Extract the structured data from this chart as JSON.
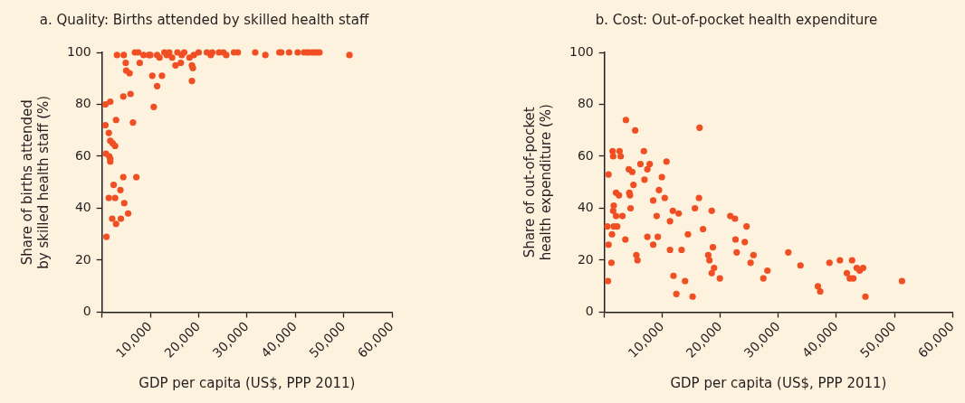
{
  "chart_data": [
    {
      "type": "scatter",
      "title": "a. Quality: Births attended by skilled health staff",
      "xlabel": "GDP per capita (US$, PPP 2011)",
      "ylabel": "Share of births attended by skilled health staff (%)",
      "xlim": [
        0,
        60000
      ],
      "xticks": [
        {
          "value": 0,
          "label": null
        },
        {
          "value": 10000,
          "label": "10,000"
        },
        {
          "value": 20000,
          "label": "20,000"
        },
        {
          "value": 30000,
          "label": "30,000"
        },
        {
          "value": 40000,
          "label": "40,000"
        },
        {
          "value": 50000,
          "label": "50,000"
        },
        {
          "value": 60000,
          "label": "60,000"
        }
      ],
      "ylim": [
        0,
        100
      ],
      "yticks": [
        0,
        20,
        40,
        60,
        80,
        100
      ],
      "grid": false,
      "legend": false,
      "marker": "circle",
      "series": [
        {
          "color": "#f04e23",
          "x": [
            3100,
            4500,
            6800,
            7500,
            8600,
            9700,
            10000,
            11400,
            11900,
            12900,
            13400,
            13900,
            14500,
            15600,
            16500,
            17000,
            18100,
            19000,
            20000,
            21700,
            22500,
            22800,
            24200,
            25100,
            25700,
            27300,
            28100,
            31700,
            33800,
            36700,
            37100,
            38700,
            40500,
            41800,
            42400,
            42800,
            43500,
            44000,
            44600,
            45000,
            51200,
            4900,
            7800,
            5000,
            5700,
            10400,
            15200,
            16300,
            18600,
            18800,
            18600,
            12400,
            11400,
            10700,
            5900,
            4400,
            700,
            1700,
            2900,
            6400,
            700,
            1400,
            1700,
            2200,
            2700,
            800,
            1500,
            1700,
            1700,
            4400,
            7100,
            2400,
            1400,
            2700,
            3800,
            4600,
            5400,
            2100,
            3900,
            2900,
            900
          ],
          "values": [
            99,
            99,
            100,
            100,
            99,
            99,
            99,
            99,
            98,
            100,
            99,
            100,
            98,
            100,
            99,
            100,
            98,
            99,
            100,
            100,
            99,
            100,
            100,
            100,
            99,
            100,
            100,
            100,
            99,
            100,
            100,
            100,
            100,
            100,
            100,
            100,
            100,
            100,
            100,
            100,
            99,
            96,
            96,
            93,
            92,
            91,
            95,
            96,
            95,
            94,
            89,
            91,
            87,
            79,
            84,
            83,
            80,
            81,
            74,
            73,
            72,
            69,
            66,
            65,
            64,
            61,
            60,
            59,
            58,
            52,
            52,
            49,
            44,
            44,
            47,
            42,
            38,
            36,
            36,
            34,
            29
          ]
        }
      ]
    },
    {
      "type": "scatter",
      "title": "b. Cost: Out-of-pocket health expenditure",
      "xlabel": "GDP per capita (US$, PPP 2011)",
      "ylabel": "Share of out-of-pocket health expenditure (%)",
      "xlim": [
        0,
        60000
      ],
      "xticks": [
        {
          "value": 0,
          "label": null
        },
        {
          "value": 10000,
          "label": "10,000"
        },
        {
          "value": 20000,
          "label": "20,000"
        },
        {
          "value": 30000,
          "label": "30,000"
        },
        {
          "value": 40000,
          "label": "40,000"
        },
        {
          "value": 50000,
          "label": "50,000"
        },
        {
          "value": 60000,
          "label": "60,000"
        }
      ],
      "ylim": [
        0,
        100
      ],
      "yticks": [
        0,
        20,
        40,
        60,
        80,
        100
      ],
      "grid": false,
      "legend": false,
      "marker": "circle",
      "series": [
        {
          "color": "#f04e23",
          "x": [
            600,
            700,
            500,
            700,
            1200,
            1300,
            1400,
            1500,
            1500,
            1600,
            1600,
            2000,
            2000,
            2200,
            2500,
            2600,
            2800,
            3100,
            3600,
            3700,
            4200,
            4300,
            4400,
            4500,
            4800,
            5000,
            5300,
            5500,
            5700,
            6200,
            6800,
            6900,
            7400,
            7800,
            7400,
            8400,
            8400,
            9000,
            9200,
            9400,
            9900,
            10400,
            10700,
            11300,
            11300,
            11800,
            11900,
            12400,
            12800,
            13300,
            13900,
            14400,
            15200,
            15600,
            16300,
            16400,
            17000,
            17900,
            18100,
            18500,
            18700,
            18500,
            18900,
            19900,
            21700,
            22500,
            22600,
            22800,
            24500,
            24200,
            25200,
            25700,
            27400,
            28100,
            31700,
            33800,
            36800,
            37200,
            38800,
            40600,
            41800,
            42300,
            42700,
            42900,
            43500,
            44000,
            44600,
            45000,
            51300
          ],
          "values": [
            12,
            26,
            33,
            53,
            19,
            30,
            62,
            60,
            39,
            41,
            33,
            46,
            37,
            33,
            45,
            62,
            60,
            37,
            28,
            74,
            55,
            46,
            45,
            40,
            54,
            49,
            70,
            22,
            20,
            57,
            62,
            51,
            55,
            57,
            29,
            43,
            26,
            37,
            29,
            47,
            52,
            44,
            58,
            35,
            24,
            39,
            14,
            7,
            38,
            24,
            12,
            30,
            6,
            40,
            44,
            71,
            32,
            22,
            20,
            39,
            25,
            15,
            17,
            13,
            37,
            36,
            28,
            23,
            33,
            27,
            19,
            22,
            13,
            16,
            23,
            18,
            10,
            8,
            19,
            20,
            15,
            13,
            20,
            13,
            17,
            16,
            17,
            6,
            12
          ]
        }
      ]
    }
  ]
}
